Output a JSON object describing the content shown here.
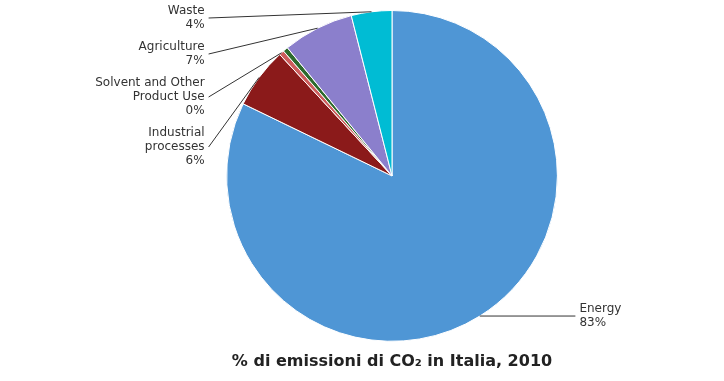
{
  "chart_data": {
    "type": "pie",
    "title": "% di emissioni di CO₂ in Italia, 2010",
    "categories": [
      "Energy",
      "Industrial\nprocesses",
      "Solvent and Other\nProduct Use",
      null,
      "Agriculture",
      "Waste"
    ],
    "values": [
      83,
      6,
      0.5,
      0.5,
      7,
      4
    ],
    "value_labels": [
      "83%",
      "6%",
      "0%",
      null,
      "7%",
      "4%"
    ],
    "colors": [
      "#4f96d5",
      "#8b1a1a",
      "#cd5c5c",
      "#2d6a2d",
      "#8b7fcc",
      "#00bcd4"
    ],
    "data_labels": true
  }
}
